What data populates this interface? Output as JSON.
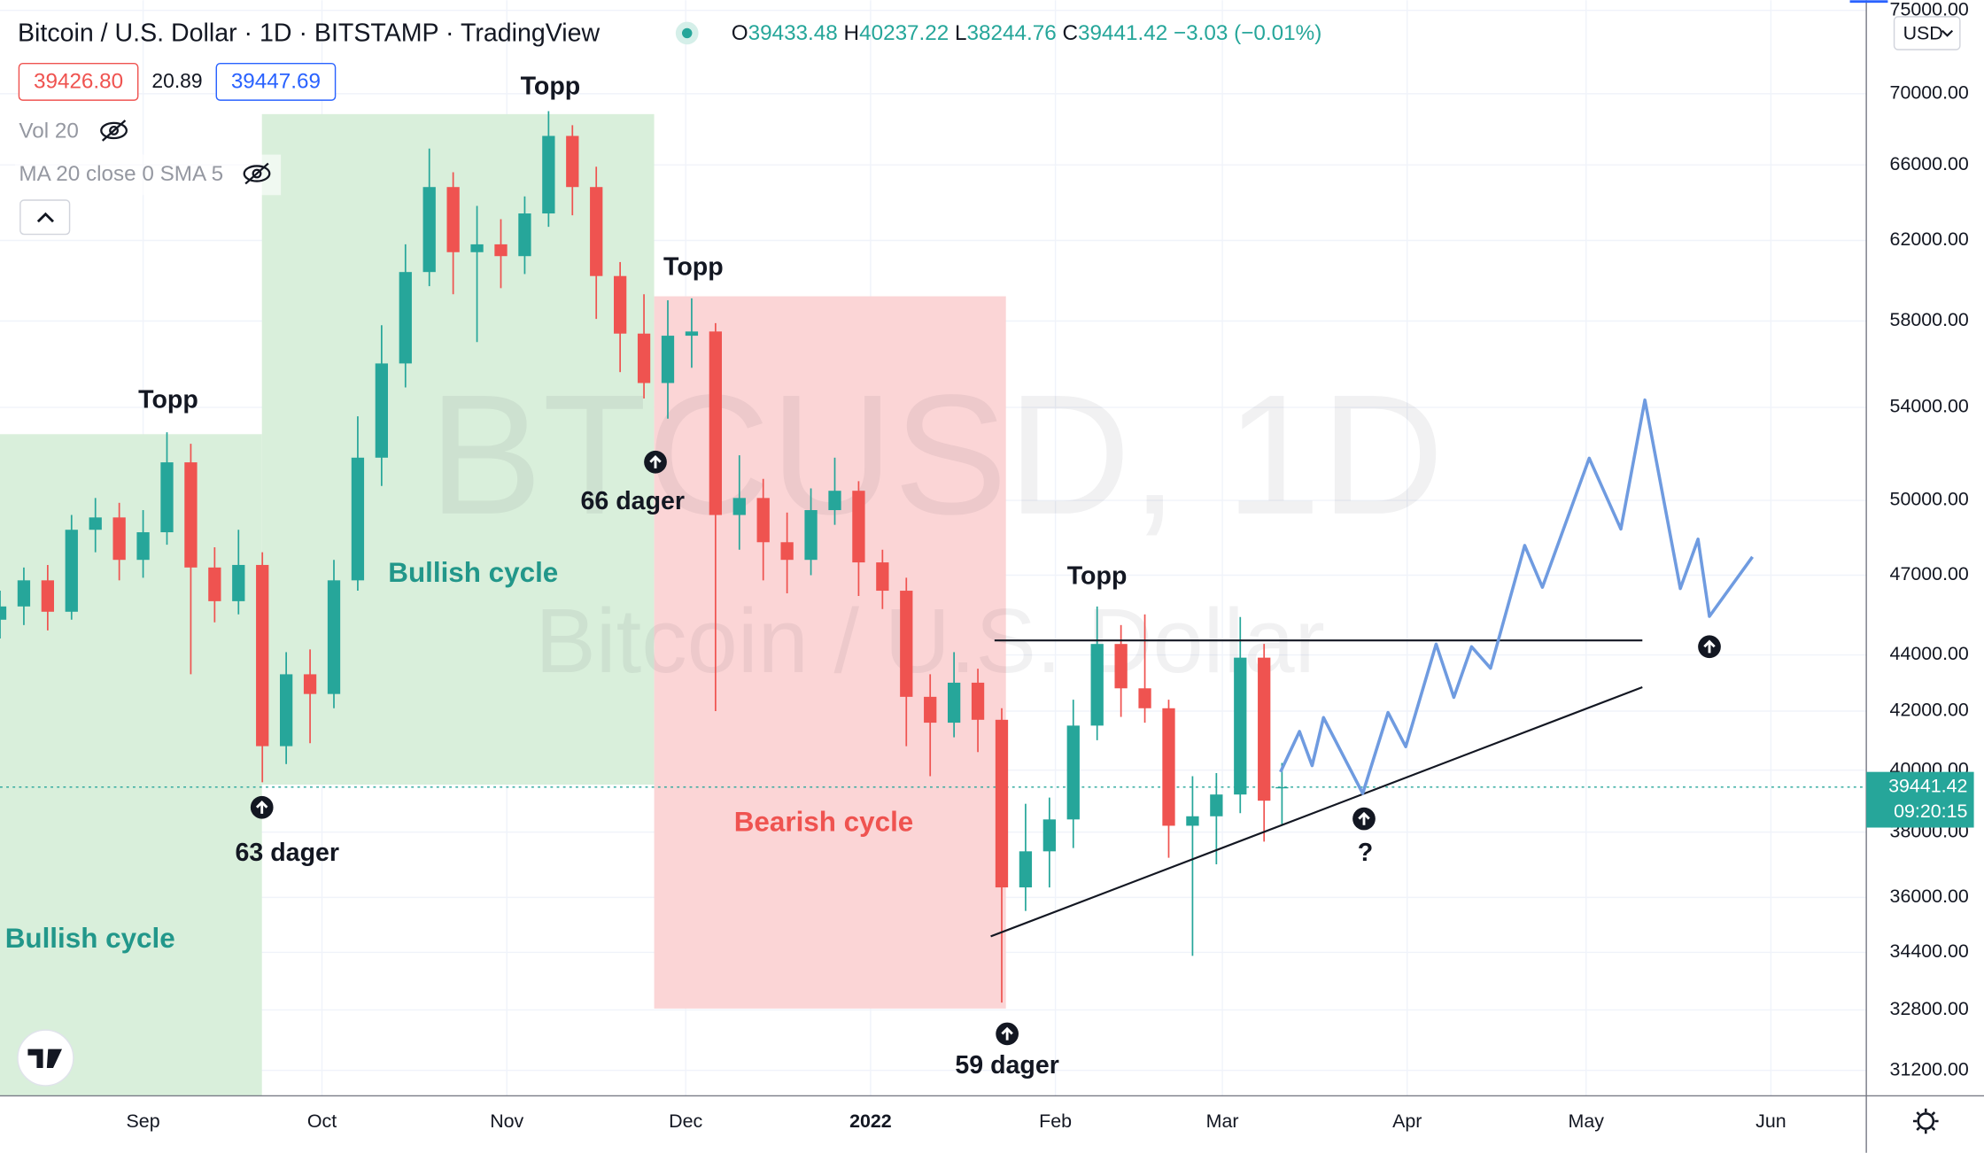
{
  "header": {
    "title": "Bitcoin / U.S. Dollar · 1D · BITSTAMP · TradingView",
    "ohlc_labels": [
      "O",
      "H",
      "L",
      "C"
    ],
    "change": "−3.03 (−0.01%)",
    "bid": "39426.80",
    "spread": "20.89",
    "ask": "39447.69",
    "indicators": [
      "Vol 20",
      "MA 20 close 0 SMA 5"
    ],
    "watermark": [
      "BTCUSD, 1D",
      "Bitcoin / U.S. Dollar"
    ],
    "currency": "USD",
    "countdown": "09:20:15"
  },
  "chart_data": {
    "type": "candlestick",
    "log_scale": true,
    "grid": true,
    "up_color": "#26a69a",
    "down_color": "#ef5350",
    "x": [
      0,
      4,
      8,
      12,
      16,
      20,
      24,
      28,
      32,
      36,
      40,
      44,
      48,
      52,
      56,
      60,
      64,
      68,
      72,
      76,
      80,
      84,
      88,
      92,
      96,
      100,
      104,
      108,
      112,
      116,
      120,
      124,
      128,
      132,
      136,
      140,
      144,
      148,
      152,
      156,
      160,
      164,
      168,
      172,
      176,
      180,
      184,
      188,
      192,
      196,
      200,
      204,
      208,
      212,
      215
    ],
    "open": [
      45300,
      45800,
      46800,
      45600,
      48800,
      49300,
      47600,
      48700,
      51600,
      47300,
      46000,
      47400,
      40800,
      43300,
      42600,
      46800,
      51800,
      56000,
      60400,
      64800,
      61400,
      61800,
      61200,
      63400,
      67600,
      64800,
      60200,
      57400,
      55100,
      57300,
      57500,
      49400,
      50100,
      48300,
      47600,
      49600,
      50400,
      47500,
      46400,
      42500,
      41600,
      43000,
      41700,
      36300,
      37400,
      38400,
      41500,
      44400,
      42800,
      42100,
      38200,
      38500,
      39200,
      43900,
      39433.48
    ],
    "high": [
      46400,
      47300,
      47400,
      49400,
      50100,
      49900,
      49600,
      52900,
      52400,
      48100,
      48800,
      47900,
      44100,
      44200,
      47600,
      53600,
      57800,
      61800,
      66900,
      65600,
      63800,
      63100,
      64300,
      69000,
      68200,
      65900,
      60900,
      59300,
      59000,
      59100,
      57900,
      51900,
      50900,
      49500,
      50500,
      51800,
      50800,
      48000,
      46900,
      43300,
      44100,
      43500,
      42100,
      38900,
      39100,
      42400,
      45800,
      45100,
      45500,
      42400,
      39800,
      39900,
      45400,
      44400,
      40237.22
    ],
    "low": [
      44600,
      45100,
      44900,
      45300,
      47900,
      46800,
      46900,
      48200,
      43300,
      45200,
      45500,
      39600,
      40200,
      40900,
      42100,
      46400,
      50600,
      54900,
      59700,
      59300,
      57000,
      59600,
      60300,
      62700,
      63300,
      58100,
      55600,
      54400,
      53500,
      55800,
      42000,
      48000,
      46800,
      46300,
      47000,
      49000,
      46200,
      45700,
      40800,
      39800,
      41100,
      40600,
      33000,
      35600,
      36300,
      37500,
      41000,
      41800,
      41600,
      37200,
      34300,
      37000,
      38600,
      37700,
      38244.76
    ],
    "close": [
      45800,
      46800,
      45600,
      48800,
      49300,
      47600,
      48700,
      51600,
      47300,
      46000,
      47400,
      40800,
      43300,
      42600,
      46800,
      51800,
      56000,
      60400,
      64800,
      61400,
      61800,
      61200,
      63400,
      67600,
      64800,
      60200,
      57400,
      55100,
      57300,
      57500,
      49400,
      50100,
      48300,
      47600,
      49600,
      50400,
      47500,
      46400,
      42500,
      41600,
      43000,
      41700,
      36300,
      37400,
      38400,
      41500,
      44400,
      42800,
      42100,
      38200,
      38500,
      39200,
      43900,
      39000,
      39441.42
    ],
    "xlim": [
      0,
      313
    ],
    "xticks": [
      {
        "value": 24,
        "label": "Sep"
      },
      {
        "value": 54,
        "label": "Oct"
      },
      {
        "value": 85,
        "label": "Nov"
      },
      {
        "value": 115,
        "label": "Dec"
      },
      {
        "value": 146,
        "label": "2022"
      },
      {
        "value": 177,
        "label": "Feb"
      },
      {
        "value": 205,
        "label": "Mar"
      },
      {
        "value": 236,
        "label": "Apr"
      },
      {
        "value": 266,
        "label": "May"
      },
      {
        "value": 297,
        "label": "Jun"
      }
    ],
    "ylim": [
      30550,
      75000
    ],
    "yticks": [
      {
        "value": 75000,
        "label": "75000.00"
      },
      {
        "value": 70000,
        "label": "70000.00"
      },
      {
        "value": 66000,
        "label": "66000.00"
      },
      {
        "value": 62000,
        "label": "62000.00"
      },
      {
        "value": 58000,
        "label": "58000.00"
      },
      {
        "value": 54000,
        "label": "54000.00"
      },
      {
        "value": 50000,
        "label": "50000.00"
      },
      {
        "value": 47000,
        "label": "47000.00"
      },
      {
        "value": 44000,
        "label": "44000.00"
      },
      {
        "value": 42000,
        "label": "42000.00"
      },
      {
        "value": 40000,
        "label": "40000.00"
      },
      {
        "value": 38000,
        "label": "38000.00"
      },
      {
        "value": 36000,
        "label": "36000.00"
      },
      {
        "value": 34400,
        "label": "34400.00"
      },
      {
        "value": 32800,
        "label": "32800.00"
      },
      {
        "value": 31200,
        "label": "31200.00"
      }
    ],
    "annotations": [
      "Topp",
      "Topp",
      "Topp",
      "Topp",
      "Bullish cycle",
      "Bullish cycle",
      "Bearish cycle",
      "63 dager",
      "66 dager",
      "59 dager",
      "?"
    ]
  }
}
